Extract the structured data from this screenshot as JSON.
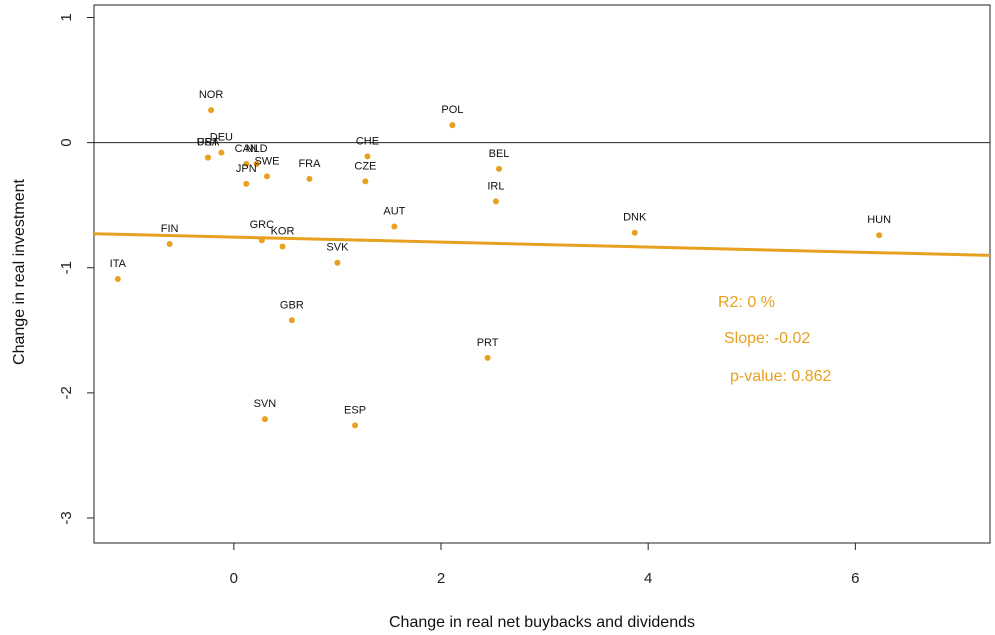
{
  "chart_data": {
    "type": "scatter",
    "xlabel": "Change in real net buybacks and dividends",
    "ylabel": "Change in real investment",
    "xlim": [
      -1.35,
      7.3
    ],
    "ylim": [
      -3.2,
      1.1
    ],
    "x_ticks": [
      0,
      2,
      4,
      6
    ],
    "y_ticks": [
      1,
      0,
      -1,
      -2,
      -3
    ],
    "x_tick_labels": [
      "0",
      "2",
      "4",
      "6"
    ],
    "y_tick_labels": [
      "1",
      "0",
      "-1",
      "-2",
      "-3"
    ],
    "hline": 0,
    "grid": false,
    "point_color": "#E8A020",
    "points": [
      {
        "label": "NOR",
        "x": -0.22,
        "y": 0.26
      },
      {
        "label": "USA",
        "x": -0.25,
        "y": -0.12
      },
      {
        "label": "PRT",
        "x": -0.25,
        "y": -0.12
      },
      {
        "label": "DEU",
        "x": -0.12,
        "y": -0.08
      },
      {
        "label": "CAN",
        "x": 0.12,
        "y": -0.17
      },
      {
        "label": "NLD",
        "x": 0.22,
        "y": -0.17
      },
      {
        "label": "SWE",
        "x": 0.32,
        "y": -0.27
      },
      {
        "label": "JPN",
        "x": 0.12,
        "y": -0.33
      },
      {
        "label": "FRA",
        "x": 0.73,
        "y": -0.29
      },
      {
        "label": "CHE",
        "x": 1.29,
        "y": -0.11
      },
      {
        "label": "CZE",
        "x": 1.27,
        "y": -0.31
      },
      {
        "label": "POL",
        "x": 2.11,
        "y": 0.14
      },
      {
        "label": "BEL",
        "x": 2.56,
        "y": -0.21
      },
      {
        "label": "IRL",
        "x": 2.53,
        "y": -0.47
      },
      {
        "label": "AUT",
        "x": 1.55,
        "y": -0.67
      },
      {
        "label": "DNK",
        "x": 3.87,
        "y": -0.72
      },
      {
        "label": "HUN",
        "x": 6.23,
        "y": -0.74
      },
      {
        "label": "FIN",
        "x": -0.62,
        "y": -0.81
      },
      {
        "label": "GRC",
        "x": 0.27,
        "y": -0.78
      },
      {
        "label": "KOR",
        "x": 0.47,
        "y": -0.83
      },
      {
        "label": "SVK",
        "x": 1.0,
        "y": -0.96
      },
      {
        "label": "ITA",
        "x": -1.12,
        "y": -1.09
      },
      {
        "label": "GBR",
        "x": 0.56,
        "y": -1.42
      },
      {
        "label": "PRT",
        "x": 2.45,
        "y": -1.72
      },
      {
        "label": "SVN",
        "x": 0.3,
        "y": -2.21
      },
      {
        "label": "ESP",
        "x": 1.17,
        "y": -2.26
      }
    ],
    "fit_line": {
      "slope": -0.02,
      "intercept": -0.755,
      "color": "#E8A020"
    },
    "annotations": {
      "r2": "R2: 0 %",
      "slope": "Slope: -0.02",
      "pvalue": "p-value: 0.862"
    }
  }
}
